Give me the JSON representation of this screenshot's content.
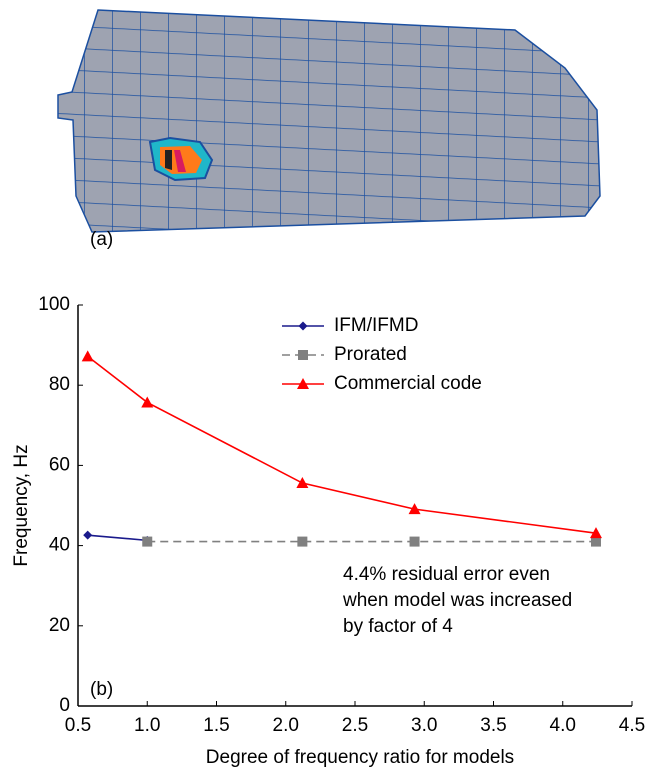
{
  "panel_a": {
    "label": "(a)"
  },
  "chart_data": {
    "type": "line",
    "panel_label": "(b)",
    "x_label": "Degree of frequency ratio for models",
    "y_label": "Frequency,  Hz",
    "xlim": [
      0.5,
      4.5
    ],
    "xticks": [
      0.5,
      {
        "value": 1,
        "label": "1.0"
      },
      1.5,
      {
        "value": 2,
        "label": "2.0"
      },
      2.5,
      {
        "value": 3,
        "label": "3.0"
      },
      3.5,
      {
        "value": 4,
        "label": "4.0"
      },
      4.5
    ],
    "ylim": [
      0,
      100
    ],
    "yticks": [
      0,
      20,
      40,
      60,
      80,
      100
    ],
    "grid": false,
    "legend": "upper-right",
    "series": [
      {
        "name": "IFM/IFMD",
        "color": "#1a1a8c",
        "marker": "diamond",
        "dash": false,
        "x": [
          0.57,
          1.0
        ],
        "values": [
          42.6,
          41.3
        ]
      },
      {
        "name": "Prorated",
        "color": "#808080",
        "marker": "square",
        "dash": true,
        "x": [
          1.0,
          2.12,
          2.93,
          4.24
        ],
        "values": [
          41,
          41,
          41,
          41
        ]
      },
      {
        "name": "Commercial code",
        "color": "#ff0000",
        "marker": "triangle",
        "dash": false,
        "x": [
          0.57,
          1.0,
          2.12,
          2.93,
          4.24
        ],
        "values": [
          87.2,
          75.7,
          55.6,
          49.1,
          43.1
        ]
      }
    ],
    "annotation": [
      "4.4% residual error even",
      "when model was increased",
      "by factor of 4"
    ]
  }
}
